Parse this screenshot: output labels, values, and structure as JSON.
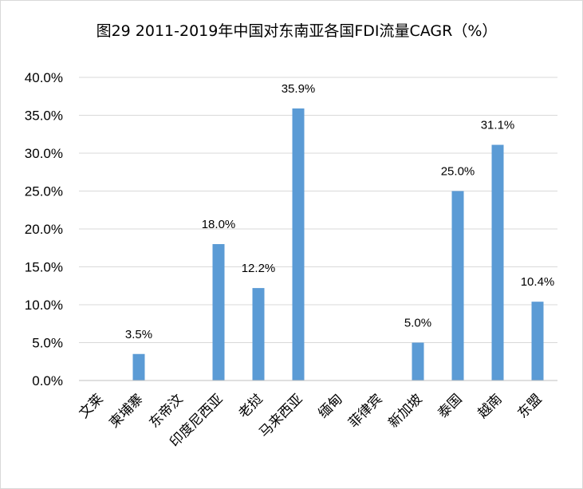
{
  "chart_data": {
    "type": "bar",
    "title": "图29 2011-2019年中国对东南亚各国FDI流量CAGR（%）",
    "xlabel": "",
    "ylabel": "",
    "categories": [
      "文莱",
      "柬埔寨",
      "东帝汶",
      "印度尼西亚",
      "老挝",
      "马来西亚",
      "缅甸",
      "菲律宾",
      "新加坡",
      "泰国",
      "越南",
      "东盟"
    ],
    "values": [
      null,
      3.5,
      null,
      18.0,
      12.2,
      35.9,
      null,
      null,
      5.0,
      25.0,
      31.1,
      10.4
    ],
    "data_labels": [
      "",
      "3.5%",
      "",
      "18.0%",
      "12.2%",
      "35.9%",
      "",
      "",
      "5.0%",
      "25.0%",
      "31.1%",
      "10.4%"
    ],
    "yticks": [
      "0.0%",
      "5.0%",
      "10.0%",
      "15.0%",
      "20.0%",
      "25.0%",
      "30.0%",
      "35.0%",
      "40.0%"
    ],
    "ylim": [
      0,
      40
    ],
    "grid": true,
    "legend": "none",
    "bar_color": "#5b9bd5"
  }
}
